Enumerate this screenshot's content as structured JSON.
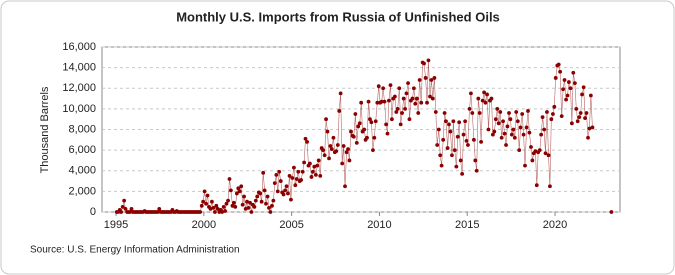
{
  "chart_data": {
    "type": "line",
    "title": "Monthly U.S. Imports from Russia of Unfinished Oils",
    "y_label": "Thousand Barrels",
    "source": "Source: U.S. Energy Information Administration",
    "xlim": [
      1994.2,
      2023.7
    ],
    "xticks": [
      1995,
      2000,
      2005,
      2010,
      2015,
      2020
    ],
    "ylim": [
      0,
      16000
    ],
    "yticks": [
      0,
      {
        "value": 2000,
        "label": "2,000"
      },
      {
        "value": 4000,
        "label": "4,000"
      },
      {
        "value": 6000,
        "label": "6,000"
      },
      {
        "value": 8000,
        "label": "8,000"
      },
      {
        "value": 10000,
        "label": "10,000"
      },
      {
        "value": 12000,
        "label": "12,000"
      },
      {
        "value": 14000,
        "label": "14,000"
      },
      {
        "value": 16000,
        "label": "16,000"
      }
    ],
    "grid": true,
    "x": [
      1995.04,
      1995.13,
      1995.21,
      1995.29,
      1995.38,
      1995.46,
      1995.54,
      1995.63,
      1995.71,
      1995.79,
      1995.88,
      1995.96,
      1996.04,
      1996.13,
      1996.21,
      1996.29,
      1996.38,
      1996.46,
      1996.54,
      1996.63,
      1996.71,
      1996.79,
      1996.88,
      1996.96,
      1997.04,
      1997.13,
      1997.21,
      1997.29,
      1997.38,
      1997.46,
      1997.54,
      1997.63,
      1997.71,
      1997.79,
      1997.88,
      1997.96,
      1998.04,
      1998.13,
      1998.21,
      1998.29,
      1998.38,
      1998.46,
      1998.54,
      1998.63,
      1998.71,
      1998.79,
      1998.88,
      1998.96,
      1999.04,
      1999.13,
      1999.21,
      1999.29,
      1999.38,
      1999.46,
      1999.54,
      1999.63,
      1999.71,
      1999.79,
      1999.88,
      1999.96,
      2000.04,
      2000.13,
      2000.21,
      2000.29,
      2000.38,
      2000.46,
      2000.54,
      2000.63,
      2000.71,
      2000.79,
      2000.88,
      2000.96,
      2001.04,
      2001.13,
      2001.21,
      2001.29,
      2001.38,
      2001.46,
      2001.54,
      2001.63,
      2001.71,
      2001.79,
      2001.88,
      2001.96,
      2002.04,
      2002.13,
      2002.21,
      2002.29,
      2002.38,
      2002.46,
      2002.54,
      2002.63,
      2002.71,
      2002.79,
      2002.88,
      2002.96,
      2003.04,
      2003.13,
      2003.21,
      2003.29,
      2003.38,
      2003.46,
      2003.54,
      2003.63,
      2003.71,
      2003.79,
      2003.88,
      2003.96,
      2004.04,
      2004.13,
      2004.21,
      2004.29,
      2004.38,
      2004.46,
      2004.54,
      2004.63,
      2004.71,
      2004.79,
      2004.88,
      2004.96,
      2005.04,
      2005.13,
      2005.21,
      2005.29,
      2005.38,
      2005.46,
      2005.54,
      2005.63,
      2005.71,
      2005.79,
      2005.88,
      2005.96,
      2006.04,
      2006.13,
      2006.21,
      2006.29,
      2006.38,
      2006.46,
      2006.54,
      2006.63,
      2006.71,
      2006.79,
      2006.88,
      2006.96,
      2007.04,
      2007.13,
      2007.21,
      2007.29,
      2007.38,
      2007.46,
      2007.54,
      2007.63,
      2007.71,
      2007.79,
      2007.88,
      2007.96,
      2008.04,
      2008.13,
      2008.21,
      2008.29,
      2008.38,
      2008.46,
      2008.54,
      2008.63,
      2008.71,
      2008.79,
      2008.88,
      2008.96,
      2009.04,
      2009.13,
      2009.21,
      2009.29,
      2009.38,
      2009.46,
      2009.54,
      2009.63,
      2009.71,
      2009.79,
      2009.88,
      2009.96,
      2010.04,
      2010.13,
      2010.21,
      2010.29,
      2010.38,
      2010.46,
      2010.54,
      2010.63,
      2010.71,
      2010.79,
      2010.88,
      2010.96,
      2011.04,
      2011.13,
      2011.21,
      2011.29,
      2011.38,
      2011.46,
      2011.54,
      2011.63,
      2011.71,
      2011.79,
      2011.88,
      2011.96,
      2012.04,
      2012.13,
      2012.21,
      2012.29,
      2012.38,
      2012.46,
      2012.54,
      2012.63,
      2012.71,
      2012.79,
      2012.88,
      2012.96,
      2013.04,
      2013.13,
      2013.21,
      2013.29,
      2013.38,
      2013.46,
      2013.54,
      2013.63,
      2013.71,
      2013.79,
      2013.88,
      2013.96,
      2014.04,
      2014.13,
      2014.21,
      2014.29,
      2014.38,
      2014.46,
      2014.54,
      2014.63,
      2014.71,
      2014.79,
      2014.88,
      2014.96,
      2015.04,
      2015.13,
      2015.21,
      2015.29,
      2015.38,
      2015.46,
      2015.54,
      2015.63,
      2015.71,
      2015.79,
      2015.88,
      2015.96,
      2016.04,
      2016.13,
      2016.21,
      2016.29,
      2016.38,
      2016.46,
      2016.54,
      2016.63,
      2016.71,
      2016.79,
      2016.88,
      2016.96,
      2017.04,
      2017.13,
      2017.21,
      2017.29,
      2017.38,
      2017.46,
      2017.54,
      2017.63,
      2017.71,
      2017.79,
      2017.88,
      2017.96,
      2018.04,
      2018.13,
      2018.21,
      2018.29,
      2018.38,
      2018.46,
      2018.54,
      2018.63,
      2018.71,
      2018.79,
      2018.88,
      2018.96,
      2019.04,
      2019.13,
      2019.21,
      2019.29,
      2019.38,
      2019.46,
      2019.54,
      2019.63,
      2019.71,
      2019.79,
      2019.88,
      2019.96,
      2020.04,
      2020.13,
      2020.21,
      2020.29,
      2020.38,
      2020.46,
      2020.54,
      2020.63,
      2020.71,
      2020.79,
      2020.88,
      2020.96,
      2021.04,
      2021.13,
      2021.21,
      2021.29,
      2021.38,
      2021.46,
      2021.54,
      2021.63,
      2021.71,
      2021.79,
      2021.88,
      2021.96,
      2022.04,
      2022.13,
      2022.21,
      2023.21
    ],
    "series": [
      {
        "name": "Monthly U.S. Imports from Russia of Unfinished Oils",
        "color": "#8b0000",
        "values": [
          0,
          0,
          200,
          0,
          500,
          1100,
          300,
          0,
          0,
          0,
          300,
          0,
          0,
          0,
          0,
          0,
          0,
          0,
          0,
          100,
          0,
          0,
          0,
          0,
          0,
          0,
          0,
          0,
          0,
          300,
          0,
          0,
          0,
          0,
          0,
          0,
          0,
          0,
          200,
          0,
          0,
          100,
          0,
          0,
          0,
          0,
          0,
          0,
          0,
          0,
          0,
          0,
          0,
          0,
          0,
          0,
          0,
          0,
          600,
          1000,
          2000,
          800,
          1600,
          500,
          300,
          1000,
          400,
          0,
          600,
          300,
          0,
          200,
          0,
          500,
          100,
          800,
          1100,
          3200,
          2100,
          600,
          900,
          500,
          1800,
          2300,
          2000,
          2500,
          700,
          1500,
          300,
          1000,
          400,
          900,
          0,
          700,
          500,
          1100,
          1500,
          1900,
          1800,
          1000,
          3800,
          2100,
          800,
          1500,
          400,
          0,
          600,
          1100,
          2800,
          3600,
          2000,
          3900,
          3000,
          1900,
          1700,
          2100,
          2500,
          1800,
          3500,
          1200,
          3300,
          4300,
          2600,
          3200,
          3900,
          3000,
          3100,
          3900,
          4800,
          7100,
          6800,
          4500,
          4700,
          3400,
          3900,
          4400,
          3600,
          4500,
          5000,
          3500,
          6200,
          6000,
          5500,
          9000,
          7800,
          5200,
          6400,
          6100,
          7200,
          5800,
          5900,
          6500,
          9800,
          11500,
          4700,
          6400,
          2500,
          5800,
          6100,
          5000,
          7800,
          7400,
          7300,
          9500,
          6700,
          8300,
          8600,
          10600,
          7800,
          8000,
          7000,
          7200,
          10700,
          9000,
          8700,
          6000,
          7200,
          8800,
          10600,
          12200,
          10600,
          10700,
          12000,
          10700,
          8500,
          7600,
          10800,
          12300,
          9000,
          11000,
          11200,
          9700,
          10000,
          12000,
          8500,
          9600,
          11000,
          10000,
          11500,
          12500,
          9000,
          10800,
          11000,
          12000,
          10500,
          11000,
          9600,
          12800,
          10600,
          14500,
          14400,
          13000,
          10600,
          14700,
          11200,
          12800,
          11000,
          13000,
          9700,
          6500,
          8000,
          5500,
          4500,
          7000,
          9600,
          8800,
          6200,
          8500,
          7800,
          5500,
          8800,
          6000,
          4400,
          7300,
          8700,
          5000,
          3700,
          7500,
          8800,
          6900,
          6500,
          10000,
          11500,
          9600,
          7000,
          5000,
          4000,
          11000,
          9600,
          6800,
          10800,
          11600,
          10600,
          11400,
          8000,
          10800,
          11000,
          7500,
          7800,
          9000,
          10000,
          8600,
          9700,
          7200,
          8800,
          7600,
          6500,
          8300,
          9600,
          9000,
          7500,
          8000,
          7200,
          9700,
          8800,
          6000,
          8200,
          9500,
          7500,
          4500,
          8200,
          9800,
          7700,
          6300,
          5000,
          5700,
          5900,
          2600,
          5800,
          6000,
          7500,
          9200,
          8000,
          5700,
          9700,
          5500,
          2500,
          9000,
          9500,
          10200,
          13000,
          14200,
          14300,
          13600,
          9300,
          11900,
          12800,
          10900,
          11300,
          12600,
          12000,
          8600,
          13500,
          12500,
          10000,
          8800,
          9200,
          9600,
          11400,
          12100,
          9100,
          9600,
          7200,
          8100,
          11300,
          8200,
          null,
          0
        ]
      }
    ]
  }
}
